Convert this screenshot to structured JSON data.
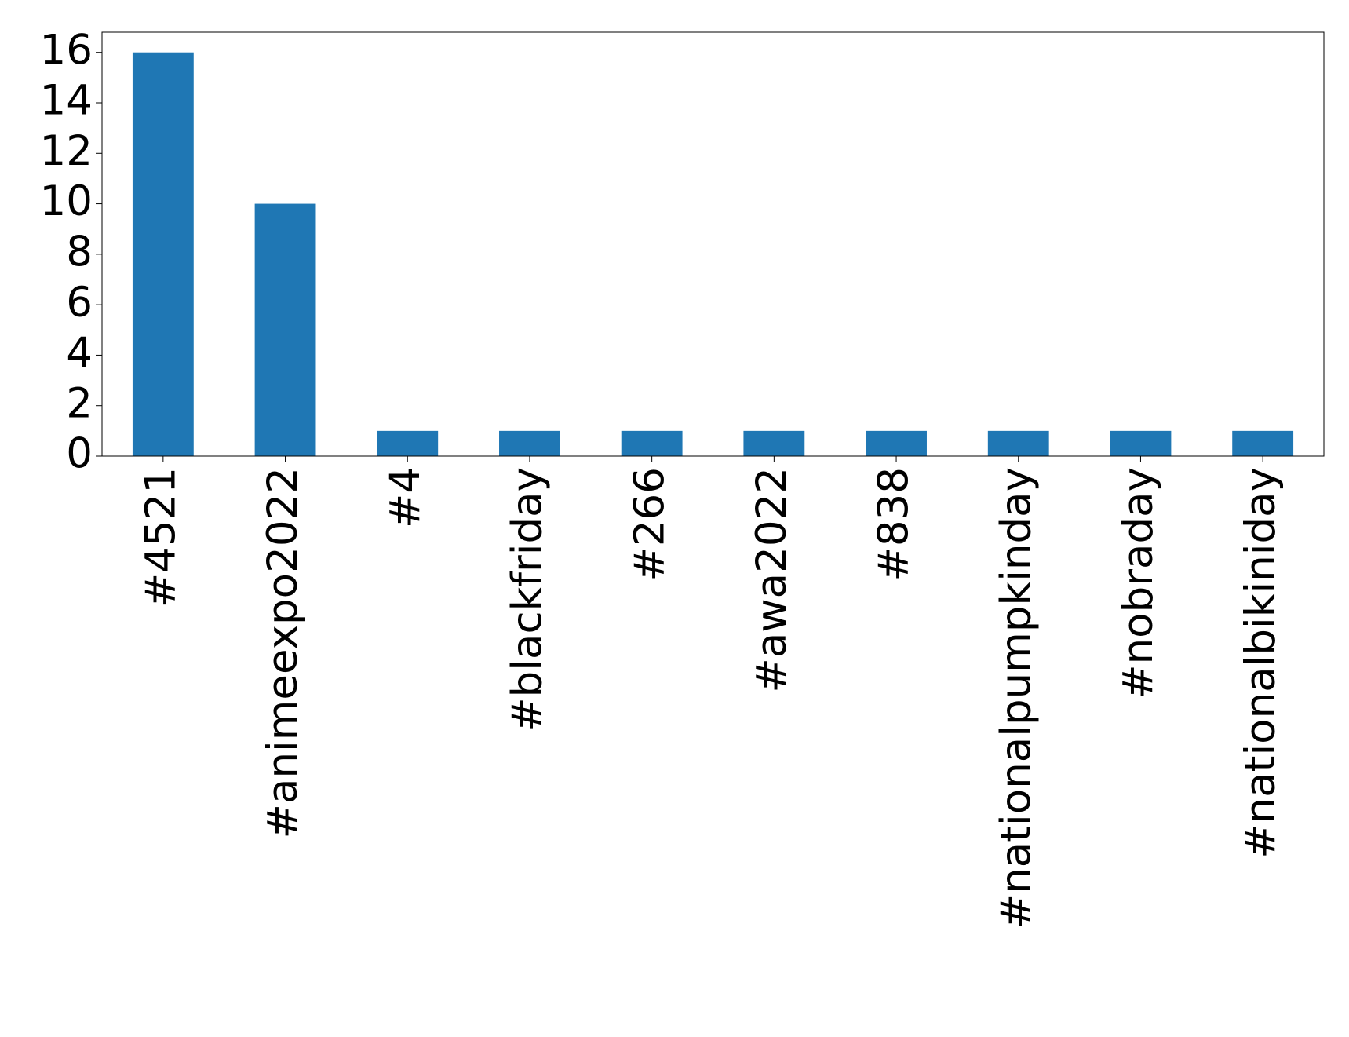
{
  "chart_data": {
    "type": "bar",
    "categories": [
      "#4521",
      "#animeexpo2022",
      "#4",
      "#blackfriday",
      "#266",
      "#awa2022",
      "#838",
      "#nationalpumpkinday",
      "#nobraday",
      "#nationalbikiniday"
    ],
    "values": [
      16,
      10,
      1,
      1,
      1,
      1,
      1,
      1,
      1,
      1
    ],
    "color": "#1f77b4",
    "ylim": [
      0,
      16.8
    ],
    "yticks": [
      0,
      2,
      4,
      6,
      8,
      10,
      12,
      14,
      16
    ],
    "grid": false
  }
}
